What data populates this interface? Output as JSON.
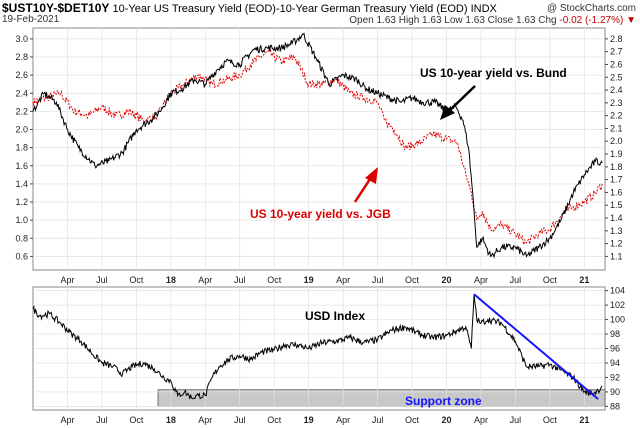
{
  "header": {
    "symbol": "$UST10Y-$DET10Y",
    "description": "10-Year US Treasury Yield (EOD)-10-Year German Treasury Yield (EOD) INDX",
    "date": "19-Feb-2021",
    "brand": "@ StockCharts.com",
    "ohlc": "Open 1.63  High 1.63  Low 1.63  Close 1.63",
    "change_label": "Chg",
    "change_value": "-0.02 (-1.27%) ▼"
  },
  "colors": {
    "spread_bund": "#000000",
    "spread_jgb": "#dd0000",
    "trendline": "#1515ff",
    "support_zone": "#c8c8c8",
    "support_text": "#1515ff"
  },
  "chart_data": [
    {
      "type": "line",
      "panel": "top",
      "y_left_ticks": [
        "3.0",
        "2.8",
        "2.6",
        "2.4",
        "2.2",
        "2.0",
        "1.8",
        "1.6",
        "1.4",
        "1.2",
        "1.0",
        "0.8",
        "0.6"
      ],
      "y_right_ticks": [
        "2.8",
        "2.7",
        "2.6",
        "2.5",
        "2.4",
        "2.3",
        "2.2",
        "2.1",
        "2.0",
        "1.9",
        "1.8",
        "1.7",
        "1.6",
        "1.5",
        "1.4",
        "1.3",
        "1.2",
        "1.1"
      ],
      "x_ticks": [
        "Apr",
        "Jul",
        "Oct",
        "18",
        "Apr",
        "Jul",
        "Oct",
        "19",
        "Apr",
        "Jul",
        "Oct",
        "20",
        "Apr",
        "Jul",
        "Oct",
        "21"
      ],
      "ylim": [
        0.45,
        3.12
      ],
      "series": [
        {
          "name": "US 10-year yield vs. Bund",
          "x": [
            2017.0,
            2017.08,
            2017.17,
            2017.25,
            2017.33,
            2017.45,
            2017.55,
            2017.65,
            2017.75,
            2017.85,
            2017.92,
            2018.0,
            2018.08,
            2018.17,
            2018.25,
            2018.33,
            2018.4,
            2018.5,
            2018.6,
            2018.7,
            2018.8,
            2018.88,
            2018.96,
            2019.05,
            2019.15,
            2019.25,
            2019.35,
            2019.42,
            2019.5,
            2019.58,
            2019.67,
            2019.75,
            2019.83,
            2019.92,
            2020.0,
            2020.07,
            2020.12,
            2020.16,
            2020.19,
            2020.22,
            2020.26,
            2020.32,
            2020.4,
            2020.5,
            2020.58,
            2020.67,
            2020.75,
            2020.83,
            2020.92,
            2021.0,
            2021.08,
            2021.13
          ],
          "values": [
            2.2,
            2.4,
            2.3,
            2.0,
            1.8,
            1.6,
            1.65,
            1.75,
            2.0,
            2.1,
            2.2,
            2.4,
            2.45,
            2.55,
            2.5,
            2.65,
            2.75,
            2.72,
            2.88,
            2.9,
            2.9,
            2.95,
            3.05,
            2.8,
            2.5,
            2.6,
            2.55,
            2.45,
            2.4,
            2.35,
            2.3,
            2.35,
            2.3,
            2.3,
            2.2,
            2.25,
            2.1,
            1.8,
            1.3,
            0.7,
            0.8,
            0.6,
            0.7,
            0.7,
            0.6,
            0.7,
            0.8,
            1.0,
            1.3,
            1.5,
            1.65,
            1.63
          ]
        },
        {
          "name": "US 10-year yield vs. JGB",
          "x": [
            2017.0,
            2017.1,
            2017.2,
            2017.3,
            2017.4,
            2017.5,
            2017.6,
            2017.7,
            2017.8,
            2017.9,
            2018.0,
            2018.1,
            2018.2,
            2018.3,
            2018.4,
            2018.5,
            2018.6,
            2018.7,
            2018.8,
            2018.9,
            2019.0,
            2019.1,
            2019.2,
            2019.3,
            2019.4,
            2019.5,
            2019.55,
            2019.62,
            2019.7,
            2019.8,
            2019.9,
            2020.0,
            2020.08,
            2020.14,
            2020.18,
            2020.22,
            2020.26,
            2020.32,
            2020.4,
            2020.5,
            2020.58,
            2020.67,
            2020.75,
            2020.83,
            2020.92,
            2021.0,
            2021.08,
            2021.13
          ],
          "values": [
            2.3,
            2.35,
            2.4,
            2.2,
            2.15,
            2.25,
            2.15,
            2.2,
            2.1,
            2.15,
            2.4,
            2.5,
            2.6,
            2.5,
            2.55,
            2.6,
            2.75,
            2.85,
            2.75,
            2.8,
            2.5,
            2.5,
            2.55,
            2.4,
            2.35,
            2.3,
            2.1,
            2.0,
            1.8,
            1.85,
            1.95,
            1.9,
            1.85,
            1.5,
            1.3,
            1.0,
            1.1,
            0.9,
            0.95,
            0.85,
            0.75,
            0.85,
            0.9,
            1.05,
            1.15,
            1.2,
            1.3,
            1.4
          ]
        }
      ],
      "annotations": [
        "US 10-year yield vs. Bund",
        "US 10-year yield vs. JGB"
      ]
    },
    {
      "type": "line",
      "panel": "bottom",
      "title": "USD Index",
      "y_ticks": [
        "104",
        "102",
        "100",
        "98",
        "96",
        "94",
        "92",
        "90",
        "88"
      ],
      "x_ticks": [
        "Apr",
        "Jul",
        "Oct",
        "18",
        "Apr",
        "Jul",
        "Oct",
        "19",
        "Apr",
        "Jul",
        "Oct",
        "20",
        "Apr",
        "Jul",
        "Oct",
        "21"
      ],
      "ylim": [
        87.5,
        104.5
      ],
      "series": [
        {
          "name": "USD Index",
          "x": [
            2017.0,
            2017.05,
            2017.12,
            2017.2,
            2017.28,
            2017.35,
            2017.42,
            2017.5,
            2017.58,
            2017.65,
            2017.72,
            2017.8,
            2017.88,
            2017.95,
            2018.0,
            2018.05,
            2018.1,
            2018.15,
            2018.2,
            2018.25,
            2018.3,
            2018.35,
            2018.42,
            2018.5,
            2018.58,
            2018.66,
            2018.75,
            2018.83,
            2018.92,
            2019.0,
            2019.1,
            2019.2,
            2019.3,
            2019.4,
            2019.5,
            2019.6,
            2019.7,
            2019.8,
            2019.9,
            2020.0,
            2020.08,
            2020.14,
            2020.18,
            2020.2,
            2020.22,
            2020.25,
            2020.3,
            2020.4,
            2020.5,
            2020.58,
            2020.67,
            2020.75,
            2020.83,
            2020.92,
            2021.0,
            2021.06,
            2021.1,
            2021.13
          ],
          "values": [
            101.5,
            100.5,
            100.8,
            99.5,
            98,
            97,
            95.5,
            94,
            93.5,
            92.5,
            93.5,
            94,
            93.2,
            92,
            91.5,
            89.5,
            90,
            89.2,
            89.5,
            89.5,
            92,
            93.5,
            94.5,
            95,
            94.5,
            95.5,
            95.8,
            96.5,
            96.5,
            96,
            96.8,
            97,
            97.5,
            96.8,
            97.2,
            98.5,
            99,
            98,
            97.5,
            97.8,
            98.5,
            99,
            96,
            103.5,
            100,
            99.5,
            100,
            99.5,
            97,
            93.5,
            93.5,
            93.8,
            93,
            92,
            90,
            89.8,
            90.2,
            90.8
          ]
        }
      ],
      "trendline": {
        "x": [
          2020.2,
          2021.1
        ],
        "values": [
          103.5,
          89
        ]
      },
      "support_zone": {
        "label": "Support zone",
        "y_range": [
          88,
          90.3
        ]
      }
    }
  ]
}
